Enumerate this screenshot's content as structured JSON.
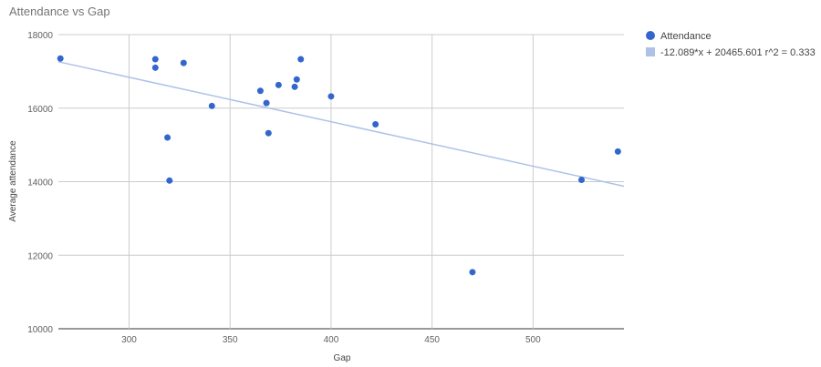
{
  "chart_data": {
    "type": "scatter",
    "title": "Attendance vs Gap",
    "xlabel": "Gap",
    "ylabel": "Average attendance",
    "xlim": [
      265,
      545
    ],
    "ylim": [
      10000,
      18000
    ],
    "xticks": [
      300,
      350,
      400,
      450,
      500
    ],
    "yticks": [
      10000,
      12000,
      14000,
      16000,
      18000
    ],
    "grid": true,
    "legend_position": "top-right",
    "series": [
      {
        "name": "Attendance",
        "color": "#3366cc",
        "points": [
          [
            266,
            17350
          ],
          [
            313,
            17330
          ],
          [
            313,
            17100
          ],
          [
            319,
            15200
          ],
          [
            320,
            14030
          ],
          [
            327,
            17230
          ],
          [
            341,
            16060
          ],
          [
            365,
            16470
          ],
          [
            368,
            16140
          ],
          [
            369,
            15320
          ],
          [
            374,
            16630
          ],
          [
            382,
            16580
          ],
          [
            383,
            16780
          ],
          [
            385,
            17330
          ],
          [
            400,
            16320
          ],
          [
            422,
            15560
          ],
          [
            470,
            11540
          ],
          [
            524,
            14050
          ],
          [
            542,
            14820
          ]
        ]
      }
    ],
    "trendline": {
      "label": "-12.089*x + 20465.601 r^2 = 0.333",
      "slope": -12.089,
      "intercept": 20465.601,
      "color": "#aec2e8"
    }
  }
}
